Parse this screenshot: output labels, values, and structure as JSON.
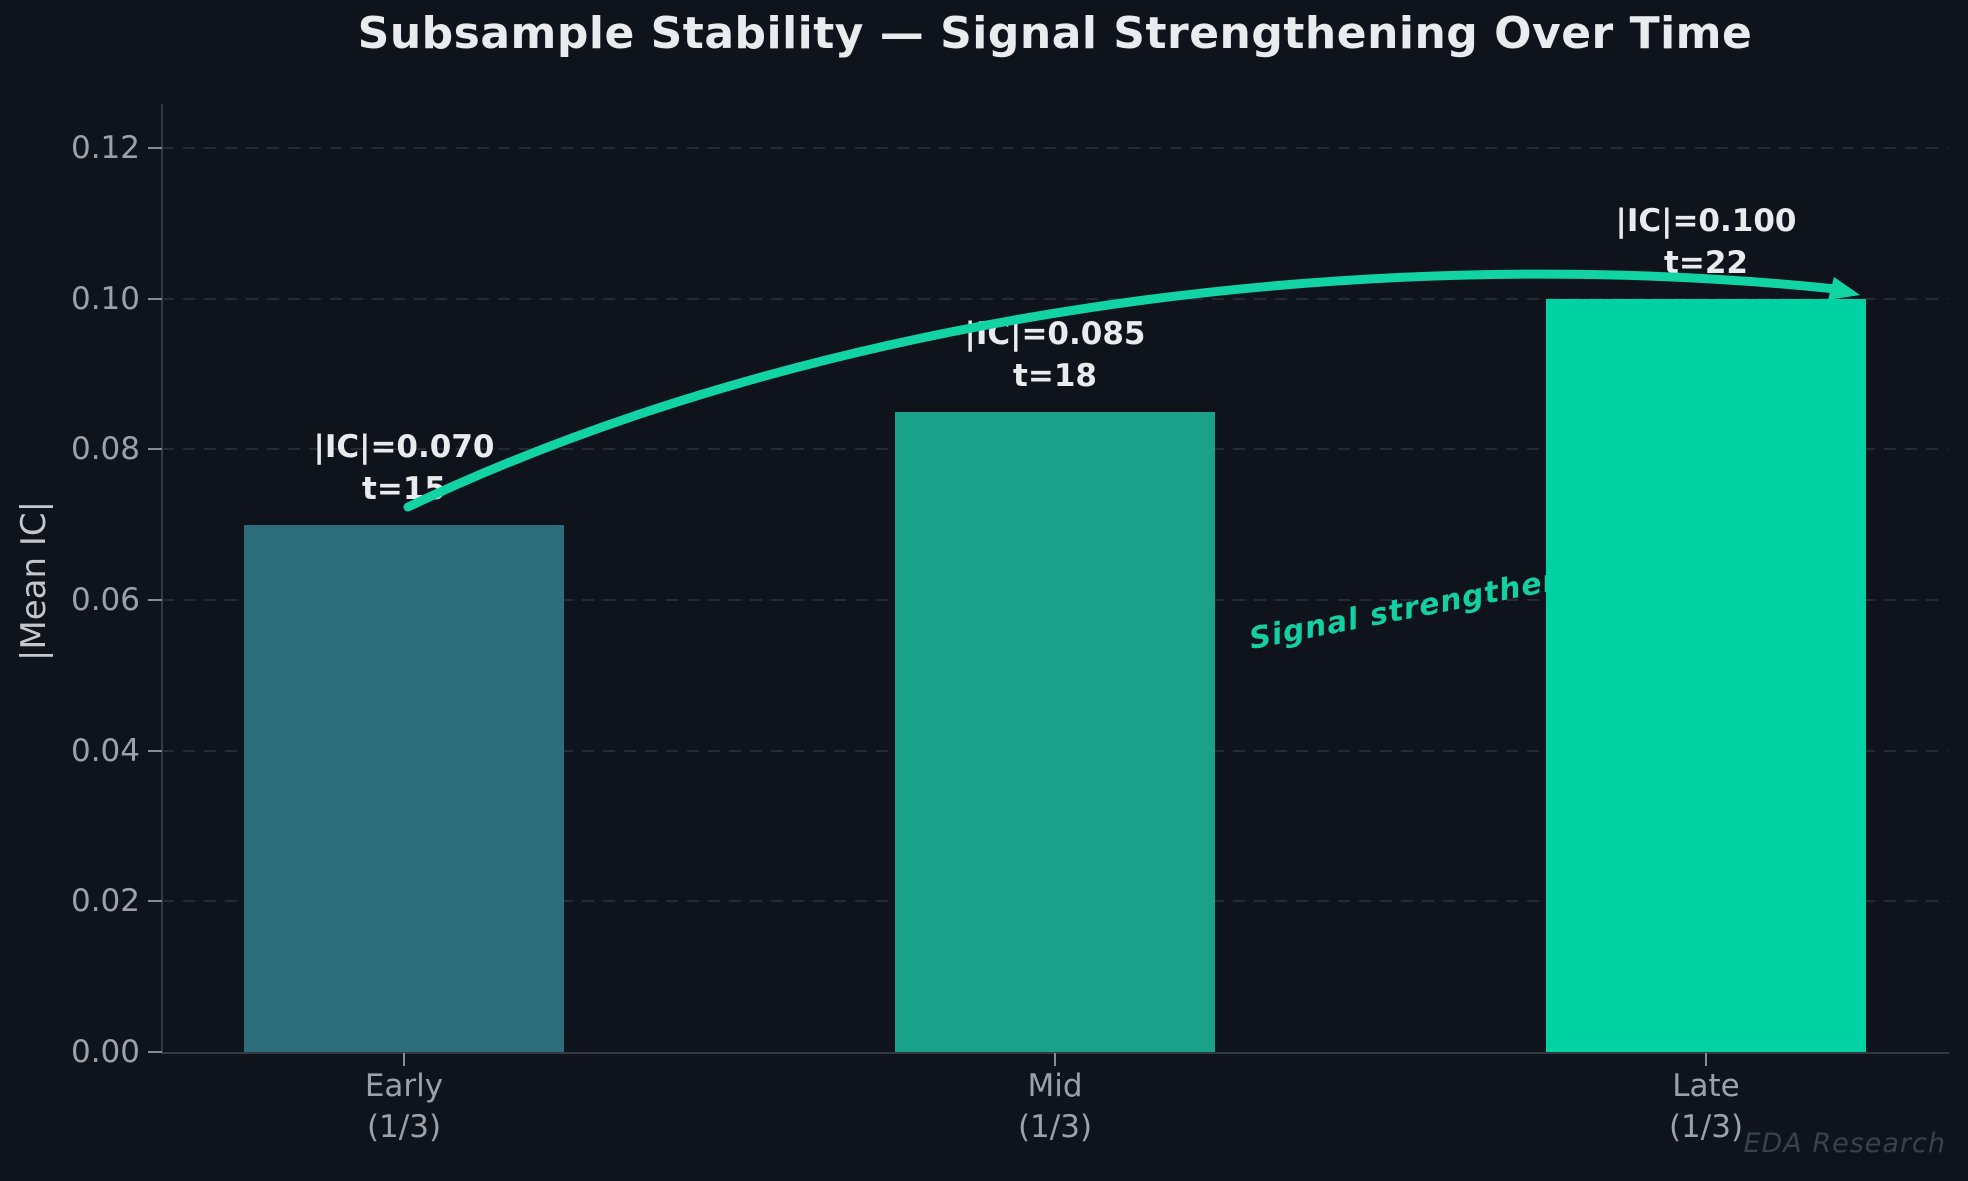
{
  "title": "Subsample Stability — Signal Strengthening Over Time",
  "watermark": "EDA Research",
  "chart_data": {
    "type": "bar",
    "title": "Subsample Stability — Signal Strengthening Over Time",
    "categories": [
      {
        "line1": "Early",
        "line2": "(1/3)"
      },
      {
        "line1": "Mid",
        "line2": "(1/3)"
      },
      {
        "line1": "Late",
        "line2": "(1/3)"
      }
    ],
    "values": [
      0.07,
      0.085,
      0.1
    ],
    "t_stats": [
      15,
      18,
      22
    ],
    "bar_labels": [
      {
        "line1": "|IC|=0.070",
        "line2": "t=15"
      },
      {
        "line1": "|IC|=0.085",
        "line2": "t=18"
      },
      {
        "line1": "|IC|=0.100",
        "line2": "t=22"
      }
    ],
    "bar_colors": [
      "#2d6e7c",
      "#1aa189",
      "#00d2a4"
    ],
    "xlabel": "",
    "ylabel": "|Mean IC|",
    "ylim": [
      0,
      0.125
    ],
    "yticks": [
      {
        "value": 0.0,
        "label": "0.00"
      },
      {
        "value": 0.02,
        "label": "0.02"
      },
      {
        "value": 0.04,
        "label": "0.04"
      },
      {
        "value": 0.06,
        "label": "0.06"
      },
      {
        "value": 0.08,
        "label": "0.08"
      },
      {
        "value": 0.1,
        "label": "0.10"
      },
      {
        "value": 0.12,
        "label": "0.12"
      }
    ],
    "grid": {
      "orientation": "horizontal",
      "style": "dashed",
      "color": "#242a36"
    },
    "legend": "none",
    "annotation": {
      "text": "Signal strengthening",
      "color": "#14cfa2"
    },
    "arrow": {
      "color": "#12d3a4",
      "from_bar": "Early",
      "to_bar": "Late"
    },
    "colors": {
      "background": "#0f131b",
      "title_text": "#e9ebee",
      "tick_text": "#9ba1aa",
      "axis_label_text": "#c3c7cd",
      "spine": "#323945",
      "watermark_text": "#394050"
    }
  }
}
